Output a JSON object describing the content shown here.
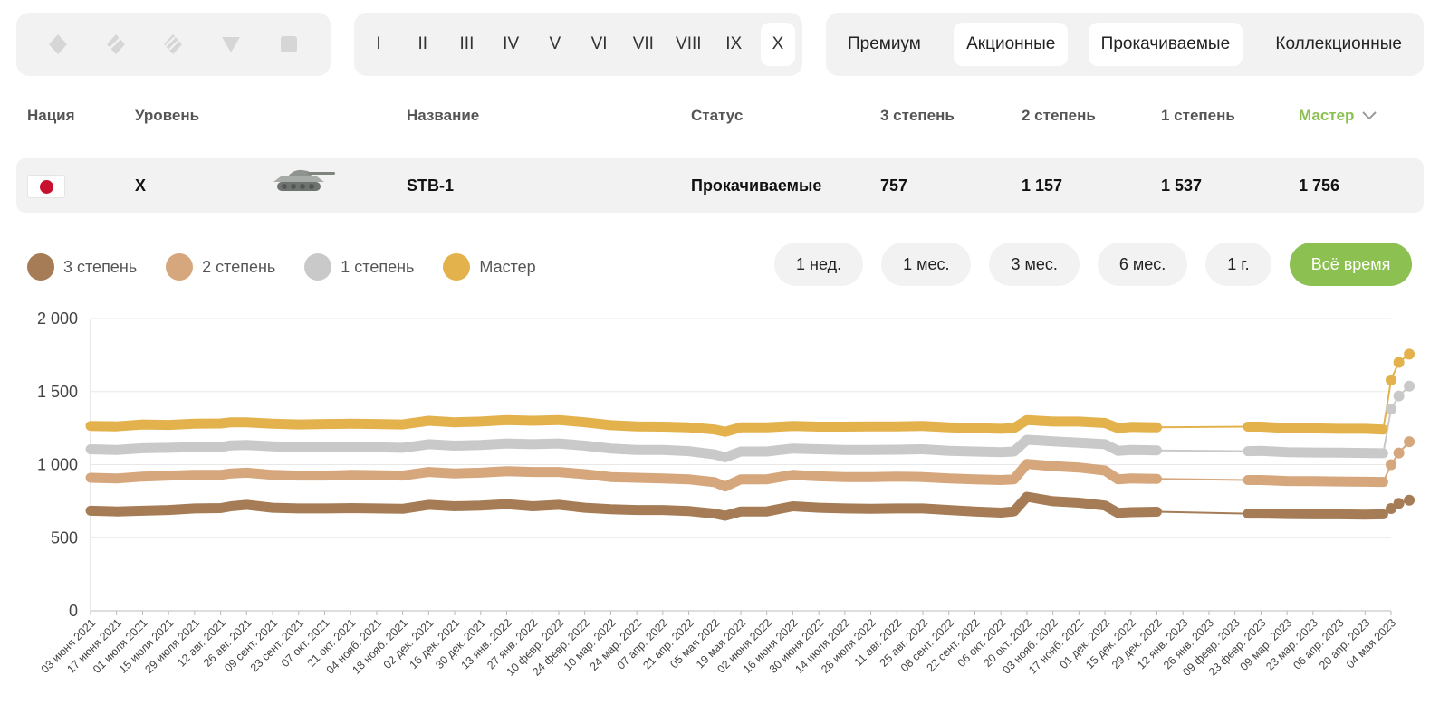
{
  "filters": {
    "vehicle_types": [
      {
        "icon": "light-tank-icon",
        "color": "#d6d6d6"
      },
      {
        "icon": "medium-tank-icon",
        "color": "#d6d6d6"
      },
      {
        "icon": "heavy-tank-icon",
        "color": "#d6d6d6"
      },
      {
        "icon": "tank-destroyer-icon",
        "color": "#d6d6d6"
      },
      {
        "icon": "spg-icon",
        "color": "#d6d6d6"
      }
    ],
    "tiers": [
      "I",
      "II",
      "III",
      "IV",
      "V",
      "VI",
      "VII",
      "VIII",
      "IX",
      "X"
    ],
    "active_tier": "X",
    "types": [
      "Премиум",
      "Акционные",
      "Прокачиваемые",
      "Коллекционные"
    ],
    "active_types": [
      "Акционные",
      "Прокачиваемые"
    ]
  },
  "table": {
    "headers": {
      "nation": "Нация",
      "tier": "Уровень",
      "name": "Название",
      "status": "Статус",
      "third": "3 степень",
      "second": "2 степень",
      "first": "1 степень",
      "master": "Мастер"
    },
    "row": {
      "nation_icon": "japan-flag-icon",
      "tier": "X",
      "tank_icon": "tank-icon",
      "name": "STB-1",
      "status": "Прокачиваемые",
      "third": "757",
      "second": "1 157",
      "first": "1 537",
      "master": "1 756"
    }
  },
  "legend": [
    {
      "label": "3 степень",
      "color": "#a57c55"
    },
    {
      "label": "2 степень",
      "color": "#d6a67c"
    },
    {
      "label": "1 степень",
      "color": "#c9c9c9"
    },
    {
      "label": "Мастер",
      "color": "#e3b24d"
    }
  ],
  "periods": [
    "1 нед.",
    "1 мес.",
    "3 мес.",
    "6 мес.",
    "1 г.",
    "Всё время"
  ],
  "active_period": "Всё время",
  "colors": {
    "accent_green": "#8cc152",
    "panel_bg": "#f2f2f2"
  },
  "chart_data": {
    "type": "line",
    "ylim": [
      0,
      2000
    ],
    "yticks": [
      0,
      500,
      1000,
      1500,
      2000
    ],
    "ytick_labels": [
      "0",
      "500",
      "1 000",
      "1 500",
      "2 000"
    ],
    "grid": true,
    "legend_position": "top-left",
    "xlabels": [
      "03 июня 2021",
      "17 июня 2021",
      "01 июля 2021",
      "15 июля 2021",
      "29 июля 2021",
      "12 авг. 2021",
      "26 авг. 2021",
      "09 сент. 2021",
      "23 сент. 2021",
      "07 окт. 2021",
      "21 окт. 2021",
      "04 нояб. 2021",
      "18 нояб. 2021",
      "02 дек. 2021",
      "16 дек. 2021",
      "30 дек. 2021",
      "13 янв. 2022",
      "27 янв. 2022",
      "10 февр. 2022",
      "24 февр. 2022",
      "10 мар. 2022",
      "24 мар. 2022",
      "07 апр. 2022",
      "21 апр. 2022",
      "05 мая 2022",
      "19 мая 2022",
      "02 июня 2022",
      "16 июня 2022",
      "30 июня 2022",
      "14 июля 2022",
      "28 июля 2022",
      "11 авг. 2022",
      "25 авг. 2022",
      "08 сент. 2022",
      "22 сент. 2022",
      "06 окт. 2022",
      "20 окт. 2022",
      "03 нояб. 2022",
      "17 нояб. 2022",
      "01 дек. 2022",
      "15 дек. 2022",
      "29 дек. 2022",
      "12 янв. 2023",
      "26 янв. 2023",
      "09 февр. 2023",
      "23 февр. 2023",
      "09 мар. 2023",
      "23 мар. 2023",
      "06 апр. 2023",
      "20 апр. 2023",
      "04 мая 2023"
    ],
    "series": [
      {
        "name": "Мастер",
        "color": "#e3b24d",
        "points": [
          [
            0,
            1265
          ],
          [
            1,
            1262
          ],
          [
            2,
            1275
          ],
          [
            3,
            1272
          ],
          [
            4,
            1280
          ],
          [
            5,
            1282
          ],
          [
            5.4,
            1290
          ],
          [
            6,
            1290
          ],
          [
            7,
            1280
          ],
          [
            8,
            1275
          ],
          [
            9,
            1278
          ],
          [
            10,
            1280
          ],
          [
            11,
            1278
          ],
          [
            12,
            1275
          ],
          [
            13,
            1300
          ],
          [
            14,
            1290
          ],
          [
            15,
            1295
          ],
          [
            16,
            1305
          ],
          [
            17,
            1300
          ],
          [
            18,
            1305
          ],
          [
            19,
            1290
          ],
          [
            20,
            1270
          ],
          [
            21,
            1262
          ],
          [
            22,
            1260
          ],
          [
            23,
            1255
          ],
          [
            24,
            1240
          ],
          [
            24.4,
            1225
          ],
          [
            25,
            1255
          ],
          [
            26,
            1255
          ],
          [
            27,
            1265
          ],
          [
            28,
            1260
          ],
          [
            29,
            1260
          ],
          [
            30,
            1262
          ],
          [
            31,
            1262
          ],
          [
            32,
            1265
          ],
          [
            33,
            1255
          ],
          [
            34,
            1250
          ],
          [
            35,
            1245
          ],
          [
            35.5,
            1250
          ],
          [
            36,
            1305
          ],
          [
            37,
            1295
          ],
          [
            38,
            1295
          ],
          [
            39,
            1285
          ],
          [
            39.5,
            1250
          ],
          [
            40,
            1258
          ],
          [
            41,
            1255
          ],
          [
            44.5,
            1260
          ],
          [
            45,
            1260
          ],
          [
            46,
            1250
          ],
          [
            47,
            1248
          ],
          [
            48,
            1245
          ],
          [
            49,
            1245
          ],
          [
            49.7,
            1240
          ],
          [
            50,
            1580
          ],
          [
            50.3,
            1700
          ],
          [
            50.7,
            1756
          ]
        ]
      },
      {
        "name": "1 степень",
        "color": "#c9c9c9",
        "points": [
          [
            0,
            1105
          ],
          [
            1,
            1100
          ],
          [
            2,
            1112
          ],
          [
            3,
            1115
          ],
          [
            4,
            1120
          ],
          [
            5,
            1120
          ],
          [
            5.4,
            1132
          ],
          [
            6,
            1135
          ],
          [
            7,
            1125
          ],
          [
            8,
            1118
          ],
          [
            9,
            1120
          ],
          [
            10,
            1120
          ],
          [
            11,
            1118
          ],
          [
            12,
            1115
          ],
          [
            13,
            1140
          ],
          [
            14,
            1130
          ],
          [
            15,
            1135
          ],
          [
            16,
            1145
          ],
          [
            17,
            1140
          ],
          [
            18,
            1145
          ],
          [
            19,
            1130
          ],
          [
            20,
            1110
          ],
          [
            21,
            1100
          ],
          [
            22,
            1100
          ],
          [
            23,
            1092
          ],
          [
            24,
            1070
          ],
          [
            24.4,
            1050
          ],
          [
            25,
            1090
          ],
          [
            26,
            1090
          ],
          [
            27,
            1110
          ],
          [
            28,
            1105
          ],
          [
            29,
            1100
          ],
          [
            30,
            1100
          ],
          [
            31,
            1102
          ],
          [
            32,
            1105
          ],
          [
            33,
            1095
          ],
          [
            34,
            1090
          ],
          [
            35,
            1085
          ],
          [
            35.5,
            1090
          ],
          [
            36,
            1170
          ],
          [
            37,
            1160
          ],
          [
            38,
            1150
          ],
          [
            39,
            1140
          ],
          [
            39.5,
            1095
          ],
          [
            40,
            1100
          ],
          [
            41,
            1098
          ],
          [
            44.5,
            1092
          ],
          [
            45,
            1095
          ],
          [
            46,
            1085
          ],
          [
            47,
            1083
          ],
          [
            48,
            1082
          ],
          [
            49,
            1080
          ],
          [
            49.7,
            1078
          ],
          [
            50,
            1380
          ],
          [
            50.3,
            1470
          ],
          [
            50.7,
            1537
          ]
        ]
      },
      {
        "name": "2 степень",
        "color": "#d6a67c",
        "points": [
          [
            0,
            910
          ],
          [
            1,
            905
          ],
          [
            2,
            918
          ],
          [
            3,
            925
          ],
          [
            4,
            930
          ],
          [
            5,
            930
          ],
          [
            5.4,
            940
          ],
          [
            6,
            945
          ],
          [
            7,
            930
          ],
          [
            8,
            925
          ],
          [
            9,
            925
          ],
          [
            10,
            930
          ],
          [
            11,
            928
          ],
          [
            12,
            925
          ],
          [
            13,
            950
          ],
          [
            14,
            940
          ],
          [
            15,
            945
          ],
          [
            16,
            955
          ],
          [
            17,
            950
          ],
          [
            18,
            950
          ],
          [
            19,
            935
          ],
          [
            20,
            915
          ],
          [
            21,
            910
          ],
          [
            22,
            905
          ],
          [
            23,
            900
          ],
          [
            24,
            880
          ],
          [
            24.4,
            850
          ],
          [
            25,
            900
          ],
          [
            26,
            900
          ],
          [
            27,
            930
          ],
          [
            28,
            920
          ],
          [
            29,
            915
          ],
          [
            30,
            915
          ],
          [
            31,
            918
          ],
          [
            32,
            915
          ],
          [
            33,
            905
          ],
          [
            34,
            900
          ],
          [
            35,
            895
          ],
          [
            35.5,
            900
          ],
          [
            36,
            1005
          ],
          [
            37,
            990
          ],
          [
            38,
            980
          ],
          [
            39,
            960
          ],
          [
            39.5,
            900
          ],
          [
            40,
            905
          ],
          [
            41,
            902
          ],
          [
            44.5,
            895
          ],
          [
            45,
            895
          ],
          [
            46,
            888
          ],
          [
            47,
            887
          ],
          [
            48,
            885
          ],
          [
            49,
            883
          ],
          [
            49.7,
            882
          ],
          [
            50,
            1000
          ],
          [
            50.3,
            1080
          ],
          [
            50.7,
            1157
          ]
        ]
      },
      {
        "name": "3 степень",
        "color": "#a57c55",
        "points": [
          [
            0,
            685
          ],
          [
            1,
            680
          ],
          [
            2,
            685
          ],
          [
            3,
            690
          ],
          [
            4,
            700
          ],
          [
            5,
            703
          ],
          [
            5.4,
            715
          ],
          [
            6,
            725
          ],
          [
            7,
            705
          ],
          [
            8,
            700
          ],
          [
            9,
            700
          ],
          [
            10,
            703
          ],
          [
            11,
            700
          ],
          [
            12,
            698
          ],
          [
            13,
            725
          ],
          [
            14,
            715
          ],
          [
            15,
            720
          ],
          [
            16,
            730
          ],
          [
            17,
            715
          ],
          [
            18,
            725
          ],
          [
            19,
            705
          ],
          [
            20,
            695
          ],
          [
            21,
            690
          ],
          [
            22,
            690
          ],
          [
            23,
            683
          ],
          [
            24,
            665
          ],
          [
            24.4,
            650
          ],
          [
            25,
            680
          ],
          [
            26,
            680
          ],
          [
            27,
            715
          ],
          [
            28,
            705
          ],
          [
            29,
            700
          ],
          [
            30,
            698
          ],
          [
            31,
            700
          ],
          [
            32,
            700
          ],
          [
            33,
            690
          ],
          [
            34,
            680
          ],
          [
            35,
            672
          ],
          [
            35.5,
            680
          ],
          [
            36,
            780
          ],
          [
            37,
            750
          ],
          [
            38,
            740
          ],
          [
            39,
            720
          ],
          [
            39.5,
            670
          ],
          [
            40,
            675
          ],
          [
            41,
            678
          ],
          [
            44.5,
            665
          ],
          [
            45,
            665
          ],
          [
            46,
            662
          ],
          [
            47,
            660
          ],
          [
            48,
            660
          ],
          [
            49,
            658
          ],
          [
            49.7,
            660
          ],
          [
            50,
            700
          ],
          [
            50.3,
            735
          ],
          [
            50.7,
            757
          ]
        ]
      }
    ]
  }
}
